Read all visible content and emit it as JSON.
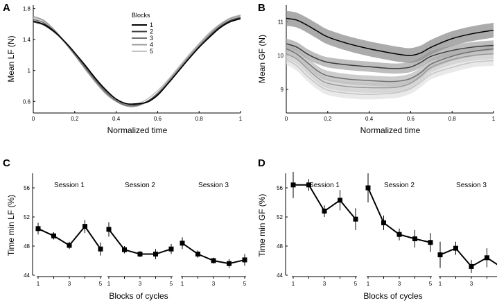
{
  "figure": {
    "panel_labels": [
      "A",
      "B",
      "C",
      "D"
    ]
  },
  "chart_data": [
    {
      "panel": "A",
      "type": "line",
      "xlabel": "Normalized time",
      "ylabel": "Mean LF (N)",
      "xlim": [
        0,
        1
      ],
      "ylim": [
        0.45,
        1.85
      ],
      "xticks": [
        0,
        0.2,
        0.4,
        0.6,
        0.8,
        1
      ],
      "xtick_labels": [
        "0",
        "0.2",
        "0.4",
        "0.6",
        "0.8",
        "1"
      ],
      "yticks": [
        0.6,
        1,
        1.4,
        1.8
      ],
      "ytick_labels": [
        "0.6",
        "1",
        "1.4",
        "1.8"
      ],
      "legend_title": "Blocks",
      "legend_position": "top-right",
      "x": [
        0,
        0.05,
        0.1,
        0.15,
        0.2,
        0.25,
        0.3,
        0.35,
        0.4,
        0.45,
        0.5,
        0.55,
        0.6,
        0.65,
        0.7,
        0.75,
        0.8,
        0.85,
        0.9,
        0.95,
        1
      ],
      "series": [
        {
          "name": "1",
          "color": "#000000",
          "values": [
            1.64,
            1.6,
            1.51,
            1.38,
            1.23,
            1.07,
            0.9,
            0.75,
            0.63,
            0.57,
            0.57,
            0.59,
            0.68,
            0.83,
            0.99,
            1.15,
            1.3,
            1.43,
            1.55,
            1.63,
            1.67
          ]
        },
        {
          "name": "2",
          "color": "#3c3c3c",
          "values": [
            1.63,
            1.59,
            1.5,
            1.38,
            1.23,
            1.06,
            0.89,
            0.74,
            0.63,
            0.57,
            0.56,
            0.6,
            0.69,
            0.83,
            0.99,
            1.15,
            1.3,
            1.44,
            1.56,
            1.64,
            1.68
          ]
        },
        {
          "name": "3",
          "color": "#707070",
          "values": [
            1.66,
            1.62,
            1.51,
            1.37,
            1.21,
            1.04,
            0.87,
            0.72,
            0.61,
            0.55,
            0.55,
            0.6,
            0.7,
            0.84,
            1.0,
            1.16,
            1.31,
            1.45,
            1.57,
            1.65,
            1.69
          ]
        },
        {
          "name": "4",
          "color": "#9a9a9a",
          "values": [
            1.7,
            1.65,
            1.53,
            1.37,
            1.2,
            1.02,
            0.85,
            0.7,
            0.6,
            0.54,
            0.54,
            0.6,
            0.71,
            0.86,
            1.02,
            1.18,
            1.33,
            1.47,
            1.59,
            1.67,
            1.71
          ]
        },
        {
          "name": "5",
          "color": "#c4c4c4",
          "values": [
            1.68,
            1.64,
            1.53,
            1.38,
            1.21,
            1.03,
            0.86,
            0.71,
            0.61,
            0.56,
            0.57,
            0.63,
            0.74,
            0.88,
            1.04,
            1.2,
            1.35,
            1.49,
            1.6,
            1.68,
            1.72
          ]
        }
      ]
    },
    {
      "panel": "B",
      "type": "area",
      "xlabel": "Normalized time",
      "ylabel": "Mean GF (N)",
      "xlim": [
        0,
        1
      ],
      "ylim": [
        8.3,
        11.5
      ],
      "xticks": [
        0,
        0.2,
        0.4,
        0.6,
        0.8,
        1
      ],
      "xtick_labels": [
        "0",
        "0.2",
        "0.4",
        "0.6",
        "0.8",
        "1"
      ],
      "yticks": [
        9,
        10,
        11
      ],
      "ytick_labels": [
        "9",
        "10",
        "11"
      ],
      "x": [
        0,
        0.05,
        0.1,
        0.15,
        0.2,
        0.3,
        0.4,
        0.5,
        0.55,
        0.6,
        0.65,
        0.7,
        0.8,
        0.9,
        1
      ],
      "series": [
        {
          "name": "1",
          "color": "#000000",
          "band_color": "#8f8f8f",
          "band_halfwidth": 0.22,
          "values": [
            11.1,
            11.05,
            10.9,
            10.72,
            10.55,
            10.35,
            10.2,
            10.08,
            10.03,
            10.0,
            10.08,
            10.25,
            10.5,
            10.65,
            10.75
          ]
        },
        {
          "name": "2",
          "color": "#3c3c3c",
          "band_color": "#a8a8a8",
          "band_halfwidth": 0.15,
          "values": [
            10.35,
            10.25,
            10.05,
            9.9,
            9.8,
            9.72,
            9.67,
            9.62,
            9.62,
            9.66,
            9.8,
            9.98,
            10.15,
            10.25,
            10.3
          ]
        },
        {
          "name": "3",
          "color": "#707070",
          "band_color": "#bcbcbc",
          "band_halfwidth": 0.15,
          "values": [
            10.2,
            10.05,
            9.8,
            9.55,
            9.4,
            9.3,
            9.26,
            9.23,
            9.25,
            9.32,
            9.5,
            9.75,
            9.98,
            10.12,
            10.2
          ]
        },
        {
          "name": "4",
          "color": "#9a9a9a",
          "band_color": "#cfcfcf",
          "band_halfwidth": 0.15,
          "values": [
            10.05,
            9.9,
            9.62,
            9.35,
            9.18,
            9.08,
            9.05,
            9.05,
            9.08,
            9.18,
            9.4,
            9.65,
            9.88,
            10.0,
            10.05
          ]
        },
        {
          "name": "5",
          "color": "#c4c4c4",
          "band_color": "#e2e2e2",
          "band_halfwidth": 0.15,
          "values": [
            9.88,
            9.7,
            9.4,
            9.15,
            8.98,
            8.88,
            8.85,
            8.88,
            8.92,
            9.02,
            9.22,
            9.45,
            9.65,
            9.8,
            9.85
          ]
        }
      ]
    },
    {
      "panel": "C",
      "type": "line",
      "xlabel": "Blocks of cycles",
      "ylabel": "Time min LF (%)",
      "ylim": [
        44,
        58
      ],
      "yticks": [
        44,
        48,
        52,
        56
      ],
      "ytick_labels": [
        "44",
        "48",
        "52",
        "56"
      ],
      "xticks": [
        1,
        3,
        5
      ],
      "xtick_labels": [
        "1",
        "3",
        "5"
      ],
      "x": [
        1,
        2,
        3,
        4,
        5
      ],
      "sessions": [
        {
          "title": "Session 1",
          "values": [
            50.4,
            49.4,
            48.1,
            50.7,
            47.6
          ],
          "errors": [
            0.8,
            0.5,
            0.5,
            0.9,
            0.9
          ]
        },
        {
          "title": "Session 2",
          "values": [
            50.3,
            47.5,
            46.9,
            46.9,
            47.6
          ],
          "errors": [
            1.0,
            0.5,
            0.4,
            0.7,
            0.7
          ]
        },
        {
          "title": "Session 3",
          "values": [
            48.4,
            46.9,
            46.0,
            45.6,
            46.1
          ],
          "errors": [
            0.8,
            0.5,
            0.4,
            0.6,
            0.8
          ]
        }
      ]
    },
    {
      "panel": "D",
      "type": "line",
      "xlabel": "Blocks of cycles",
      "ylabel": "Time min GF (%)",
      "ylim": [
        44,
        58
      ],
      "yticks": [
        44,
        48,
        52,
        56
      ],
      "ytick_labels": [
        "44",
        "48",
        "52",
        "56"
      ],
      "xticks": [
        1,
        3,
        5
      ],
      "xtick_labels": [
        "1",
        "3",
        "5"
      ],
      "x": [
        1,
        2,
        3,
        4,
        5
      ],
      "sessions": [
        {
          "title": "Session 1",
          "values": [
            56.4,
            56.4,
            52.8,
            54.3,
            51.7
          ],
          "errors": [
            1.8,
            0.8,
            0.8,
            1.4,
            1.5
          ]
        },
        {
          "title": "Session 2",
          "values": [
            56.0,
            51.2,
            49.6,
            49.0,
            48.5
          ],
          "errors": [
            2.0,
            1.0,
            0.8,
            1.2,
            1.3
          ]
        },
        {
          "title": "Session 3",
          "values": [
            46.8,
            47.7,
            45.2,
            46.4,
            45.0
          ],
          "errors": [
            1.8,
            0.9,
            0.9,
            1.3,
            1.5
          ]
        }
      ]
    }
  ]
}
